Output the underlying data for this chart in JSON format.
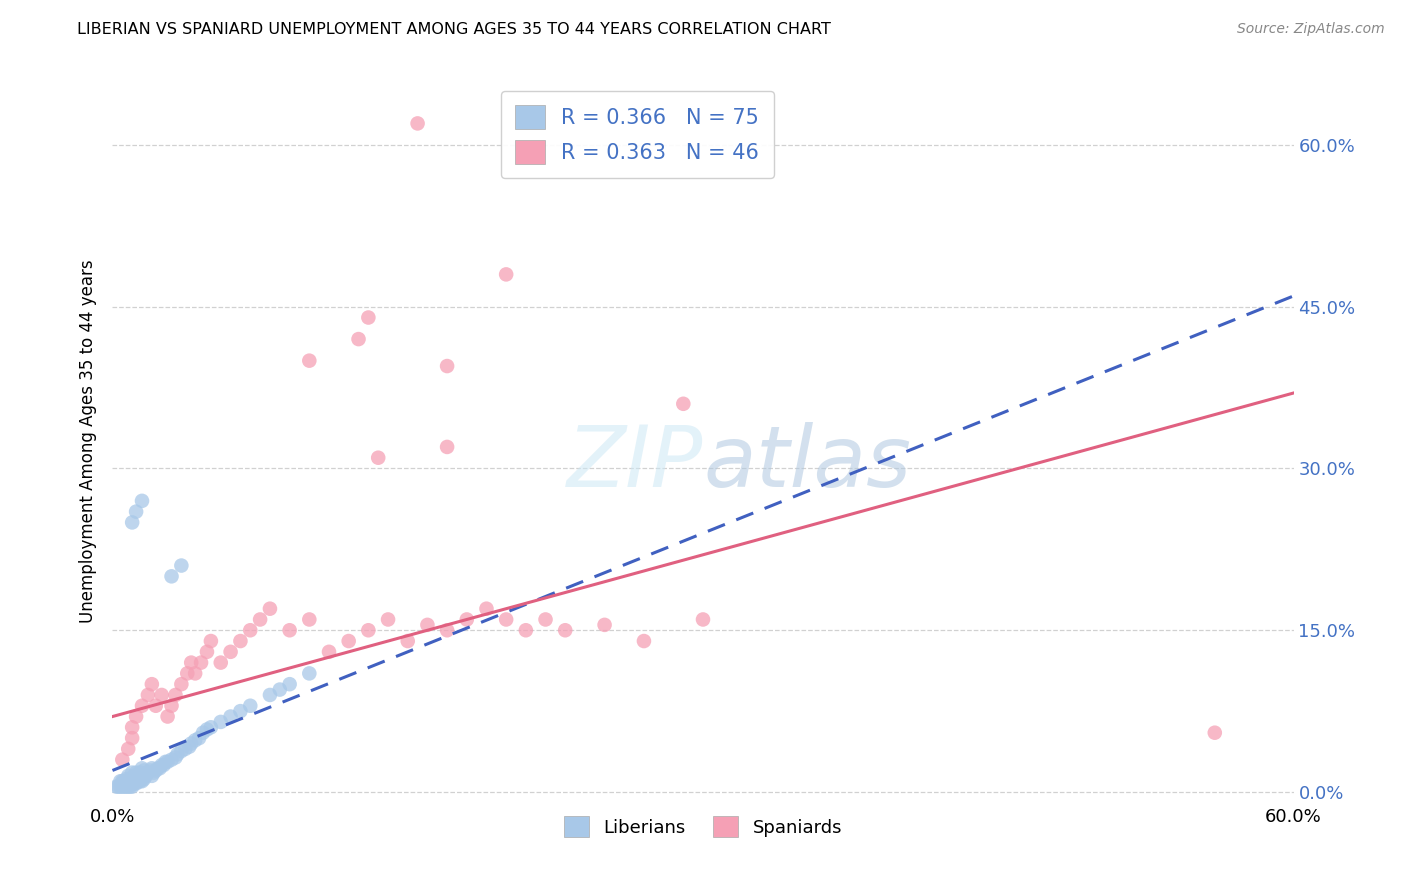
{
  "title": "LIBERIAN VS SPANIARD UNEMPLOYMENT AMONG AGES 35 TO 44 YEARS CORRELATION CHART",
  "source": "Source: ZipAtlas.com",
  "ylabel": "Unemployment Among Ages 35 to 44 years",
  "xlim": [
    0.0,
    0.6
  ],
  "ylim": [
    -0.01,
    0.66
  ],
  "yticks": [
    0.0,
    0.15,
    0.3,
    0.45,
    0.6
  ],
  "ytick_labels": [
    "0.0%",
    "15.0%",
    "30.0%",
    "45.0%",
    "60.0%"
  ],
  "xtick_labels": [
    "0.0%",
    "60.0%"
  ],
  "liberian_R": 0.366,
  "liberian_N": 75,
  "spaniard_R": 0.363,
  "spaniard_N": 46,
  "liberian_color": "#a8c8e8",
  "spaniard_color": "#f5a0b5",
  "liberian_line_color": "#4060c0",
  "spaniard_line_color": "#e06080",
  "background_color": "#ffffff",
  "grid_color": "#cccccc",
  "lib_x": [
    0.002,
    0.003,
    0.004,
    0.004,
    0.005,
    0.005,
    0.005,
    0.006,
    0.006,
    0.007,
    0.007,
    0.007,
    0.008,
    0.008,
    0.008,
    0.008,
    0.009,
    0.009,
    0.009,
    0.01,
    0.01,
    0.01,
    0.01,
    0.011,
    0.011,
    0.012,
    0.012,
    0.012,
    0.013,
    0.013,
    0.014,
    0.014,
    0.015,
    0.015,
    0.015,
    0.016,
    0.016,
    0.017,
    0.018,
    0.019,
    0.02,
    0.02,
    0.021,
    0.022,
    0.023,
    0.024,
    0.025,
    0.026,
    0.027,
    0.028,
    0.03,
    0.032,
    0.033,
    0.035,
    0.037,
    0.039,
    0.04,
    0.042,
    0.044,
    0.046,
    0.048,
    0.05,
    0.055,
    0.06,
    0.065,
    0.07,
    0.08,
    0.085,
    0.09,
    0.1,
    0.01,
    0.012,
    0.015,
    0.03,
    0.035
  ],
  "lib_y": [
    0.005,
    0.005,
    0.005,
    0.01,
    0.005,
    0.008,
    0.01,
    0.005,
    0.01,
    0.005,
    0.008,
    0.012,
    0.005,
    0.008,
    0.01,
    0.015,
    0.005,
    0.008,
    0.012,
    0.005,
    0.008,
    0.012,
    0.018,
    0.008,
    0.015,
    0.008,
    0.012,
    0.018,
    0.01,
    0.015,
    0.01,
    0.018,
    0.01,
    0.015,
    0.022,
    0.012,
    0.02,
    0.015,
    0.018,
    0.02,
    0.015,
    0.022,
    0.018,
    0.02,
    0.022,
    0.022,
    0.025,
    0.025,
    0.028,
    0.028,
    0.03,
    0.032,
    0.035,
    0.038,
    0.04,
    0.042,
    0.045,
    0.048,
    0.05,
    0.055,
    0.058,
    0.06,
    0.065,
    0.07,
    0.075,
    0.08,
    0.09,
    0.095,
    0.1,
    0.11,
    0.25,
    0.26,
    0.27,
    0.2,
    0.21
  ],
  "spa_x": [
    0.005,
    0.008,
    0.01,
    0.01,
    0.012,
    0.015,
    0.018,
    0.02,
    0.022,
    0.025,
    0.028,
    0.03,
    0.032,
    0.035,
    0.038,
    0.04,
    0.042,
    0.045,
    0.048,
    0.05,
    0.055,
    0.06,
    0.065,
    0.07,
    0.075,
    0.08,
    0.09,
    0.1,
    0.11,
    0.12,
    0.13,
    0.14,
    0.15,
    0.16,
    0.17,
    0.18,
    0.19,
    0.2,
    0.21,
    0.22,
    0.23,
    0.25,
    0.27,
    0.3,
    0.56,
    0.17
  ],
  "spa_y": [
    0.03,
    0.04,
    0.05,
    0.06,
    0.07,
    0.08,
    0.09,
    0.1,
    0.08,
    0.09,
    0.07,
    0.08,
    0.09,
    0.1,
    0.11,
    0.12,
    0.11,
    0.12,
    0.13,
    0.14,
    0.12,
    0.13,
    0.14,
    0.15,
    0.16,
    0.17,
    0.15,
    0.16,
    0.13,
    0.14,
    0.15,
    0.16,
    0.14,
    0.155,
    0.15,
    0.16,
    0.17,
    0.16,
    0.15,
    0.16,
    0.15,
    0.155,
    0.14,
    0.16,
    0.055,
    0.395
  ],
  "spa_outlier_x": [
    0.1,
    0.155,
    0.2,
    0.13,
    0.125,
    0.17,
    0.29,
    0.135
  ],
  "spa_outlier_y": [
    0.4,
    0.62,
    0.48,
    0.44,
    0.42,
    0.32,
    0.36,
    0.31
  ]
}
